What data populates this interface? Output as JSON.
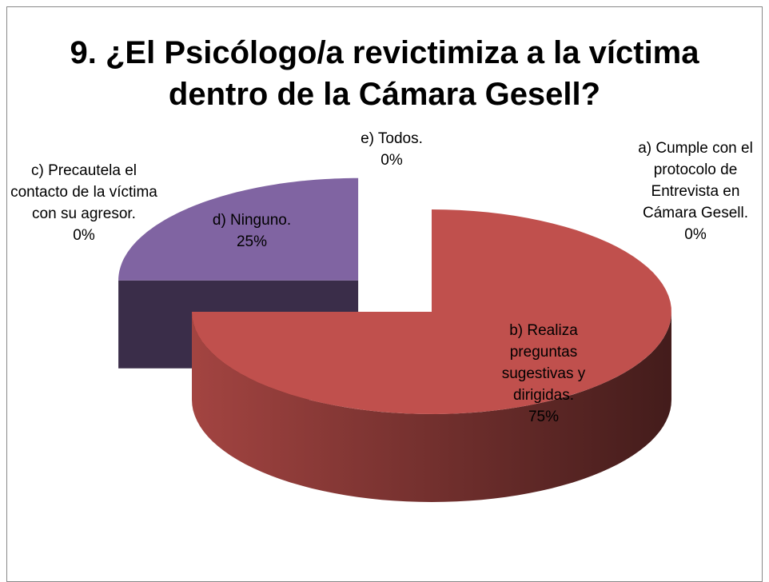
{
  "chart_data": {
    "type": "pie",
    "title": "9. ¿El Psicólogo/a revictimiza a la víctima dentro de la Cámara Gesell?",
    "categories": [
      "a) Cumple con el protocolo de Entrevista en Cámara Gesell.",
      "b) Realiza preguntas sugestivas y dirigidas.",
      "c) Precautela el contacto de la víctima con su agresor.",
      "d) Ninguno.",
      "e) Todos."
    ],
    "values": [
      0,
      75,
      0,
      25,
      0
    ],
    "value_labels": [
      "0%",
      "75%",
      "0%",
      "25%",
      "0%"
    ],
    "colors": [
      "#4f81bd",
      "#c0504d",
      "#9bbb59",
      "#8064a2",
      "#4bacc6"
    ]
  }
}
